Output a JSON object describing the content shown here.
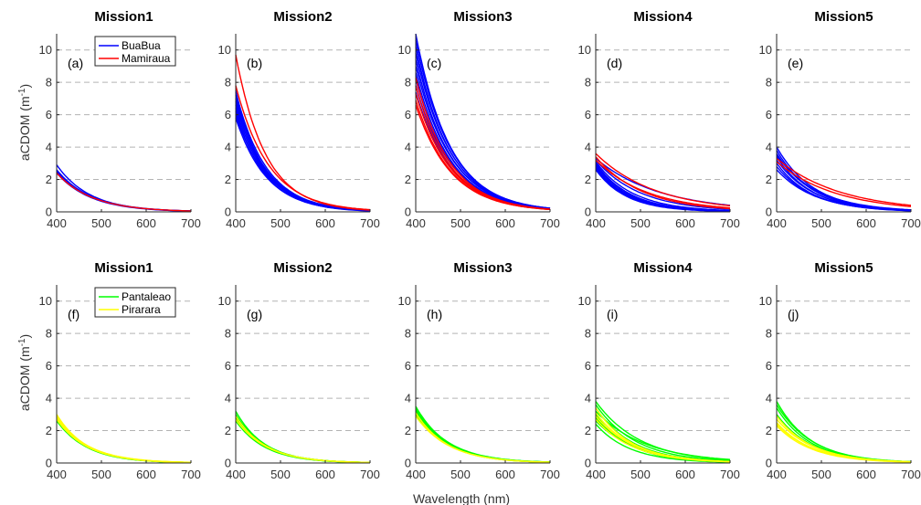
{
  "figure": {
    "ylabel": "aCDOM (m",
    "ylabel_sup": "-1",
    "ylabel_tail": ")",
    "xlabel": "Wavelength (nm)",
    "colors": {
      "BuaBua": "#0000ff",
      "Mamiraua": "#ff0000",
      "Pantaleao": "#00ff00",
      "Pirarara": "#ffff00"
    }
  },
  "legends": [
    {
      "entries": [
        {
          "name": "BuaBua",
          "color": "#0000ff"
        },
        {
          "name": "Mamiraua",
          "color": "#ff0000"
        }
      ]
    },
    {
      "entries": [
        {
          "name": "Pantaleao",
          "color": "#00ff00"
        },
        {
          "name": "Pirarara",
          "color": "#ffff00"
        }
      ]
    }
  ],
  "chart_data": [
    {
      "type": "line",
      "title": "Mission1",
      "panel_label": "(a)",
      "xlim": [
        400,
        700
      ],
      "ylim": [
        0,
        11
      ],
      "xticks": [
        "400",
        "500",
        "600",
        "700"
      ],
      "yticks": [
        "0",
        "2",
        "4",
        "6",
        "8",
        "10"
      ],
      "grid": "y-dashed",
      "series": [
        {
          "name": "BuaBua",
          "color": "#0000ff",
          "curves": [
            {
              "a400": 2.9,
              "s": 0.0135
            },
            {
              "a400": 2.6,
              "s": 0.013
            },
            {
              "a400": 2.5,
              "s": 0.0125
            },
            {
              "a400": 2.4,
              "s": 0.013
            }
          ]
        },
        {
          "name": "Mamiraua",
          "color": "#ff0000",
          "curves": [
            {
              "a400": 2.4,
              "s": 0.0125
            }
          ]
        }
      ]
    },
    {
      "type": "line",
      "title": "Mission2",
      "panel_label": "(b)",
      "xlim": [
        400,
        700
      ],
      "ylim": [
        0,
        11
      ],
      "xticks": [
        "400",
        "500",
        "600",
        "700"
      ],
      "yticks": [
        "0",
        "2",
        "4",
        "6",
        "8",
        "10"
      ],
      "grid": "y-dashed",
      "series": [
        {
          "name": "BuaBua",
          "color": "#0000ff",
          "curves": [
            {
              "a400": 7.4,
              "s": 0.0145
            },
            {
              "a400": 7.2,
              "s": 0.015
            },
            {
              "a400": 7.0,
              "s": 0.0145
            },
            {
              "a400": 6.8,
              "s": 0.015
            },
            {
              "a400": 6.6,
              "s": 0.014
            },
            {
              "a400": 6.4,
              "s": 0.0145
            },
            {
              "a400": 6.2,
              "s": 0.015
            },
            {
              "a400": 6.0,
              "s": 0.014
            },
            {
              "a400": 5.8,
              "s": 0.0145
            },
            {
              "a400": 7.5,
              "s": 0.016
            }
          ]
        },
        {
          "name": "Mamiraua",
          "color": "#ff0000",
          "curves": [
            {
              "a400": 9.7,
              "s": 0.015
            },
            {
              "a400": 7.8,
              "s": 0.0135
            }
          ]
        }
      ]
    },
    {
      "type": "line",
      "title": "Mission3",
      "panel_label": "(c)",
      "xlim": [
        400,
        700
      ],
      "ylim": [
        0,
        11
      ],
      "xticks": [
        "400",
        "500",
        "600",
        "700"
      ],
      "yticks": [
        "0",
        "2",
        "4",
        "6",
        "8",
        "10"
      ],
      "grid": "y-dashed",
      "series": [
        {
          "name": "BuaBua",
          "color": "#0000ff",
          "curves": [
            {
              "a400": 11.0,
              "s": 0.013
            },
            {
              "a400": 10.6,
              "s": 0.0128
            },
            {
              "a400": 10.2,
              "s": 0.013
            },
            {
              "a400": 9.8,
              "s": 0.0126
            },
            {
              "a400": 9.4,
              "s": 0.0128
            },
            {
              "a400": 9.0,
              "s": 0.0125
            },
            {
              "a400": 8.6,
              "s": 0.0127
            },
            {
              "a400": 8.2,
              "s": 0.0125
            },
            {
              "a400": 7.8,
              "s": 0.0123
            },
            {
              "a400": 7.4,
              "s": 0.0125
            }
          ]
        },
        {
          "name": "Mamiraua",
          "color": "#ff0000",
          "curves": [
            {
              "a400": 8.3,
              "s": 0.013
            },
            {
              "a400": 7.8,
              "s": 0.013
            },
            {
              "a400": 7.3,
              "s": 0.0128
            },
            {
              "a400": 6.9,
              "s": 0.0128
            },
            {
              "a400": 6.6,
              "s": 0.0126
            }
          ]
        }
      ]
    },
    {
      "type": "line",
      "title": "Mission4",
      "panel_label": "(d)",
      "xlim": [
        400,
        700
      ],
      "ylim": [
        0,
        11
      ],
      "xticks": [
        "400",
        "500",
        "600",
        "700"
      ],
      "yticks": [
        "0",
        "2",
        "4",
        "6",
        "8",
        "10"
      ],
      "grid": "y-dashed",
      "series": [
        {
          "name": "BuaBua",
          "color": "#0000ff",
          "curves": [
            {
              "a400": 3.3,
              "s": 0.007
            },
            {
              "a400": 3.2,
              "s": 0.01
            },
            {
              "a400": 3.1,
              "s": 0.012
            },
            {
              "a400": 3.0,
              "s": 0.013
            },
            {
              "a400": 2.9,
              "s": 0.0135
            },
            {
              "a400": 2.8,
              "s": 0.014
            },
            {
              "a400": 2.7,
              "s": 0.014
            },
            {
              "a400": 2.6,
              "s": 0.0145
            }
          ]
        },
        {
          "name": "Mamiraua",
          "color": "#ff0000",
          "curves": [
            {
              "a400": 3.6,
              "s": 0.0075
            },
            {
              "a400": 3.4,
              "s": 0.0095
            },
            {
              "a400": 3.2,
              "s": 0.0085
            }
          ]
        }
      ]
    },
    {
      "type": "line",
      "title": "Mission5",
      "panel_label": "(e)",
      "xlim": [
        400,
        700
      ],
      "ylim": [
        0,
        11
      ],
      "xticks": [
        "400",
        "500",
        "600",
        "700"
      ],
      "yticks": [
        "0",
        "2",
        "4",
        "6",
        "8",
        "10"
      ],
      "grid": "y-dashed",
      "series": [
        {
          "name": "BuaBua",
          "color": "#0000ff",
          "curves": [
            {
              "a400": 4.0,
              "s": 0.012
            },
            {
              "a400": 3.8,
              "s": 0.0125
            },
            {
              "a400": 3.6,
              "s": 0.012
            },
            {
              "a400": 3.4,
              "s": 0.0125
            },
            {
              "a400": 3.2,
              "s": 0.012
            },
            {
              "a400": 3.0,
              "s": 0.0125
            },
            {
              "a400": 2.8,
              "s": 0.012
            },
            {
              "a400": 2.6,
              "s": 0.0115
            },
            {
              "a400": 3.5,
              "s": 0.011
            }
          ]
        },
        {
          "name": "Mamiraua",
          "color": "#ff0000",
          "curves": [
            {
              "a400": 3.3,
              "s": 0.007
            },
            {
              "a400": 3.1,
              "s": 0.0075
            }
          ]
        }
      ]
    },
    {
      "type": "line",
      "title": "Mission1",
      "panel_label": "(f)",
      "xlim": [
        400,
        700
      ],
      "ylim": [
        0,
        11
      ],
      "xticks": [
        "400",
        "500",
        "600",
        "700"
      ],
      "yticks": [
        "0",
        "2",
        "4",
        "6",
        "8",
        "10"
      ],
      "grid": "y-dashed",
      "series": [
        {
          "name": "Pantaleao",
          "color": "#00ff00",
          "curves": [
            {
              "a400": 2.9,
              "s": 0.015
            },
            {
              "a400": 2.8,
              "s": 0.0145
            },
            {
              "a400": 2.7,
              "s": 0.015
            },
            {
              "a400": 2.6,
              "s": 0.0145
            }
          ]
        },
        {
          "name": "Pirarara",
          "color": "#ffff00",
          "curves": [
            {
              "a400": 3.0,
              "s": 0.015
            },
            {
              "a400": 2.9,
              "s": 0.0145
            },
            {
              "a400": 2.8,
              "s": 0.014
            },
            {
              "a400": 2.7,
              "s": 0.0145
            }
          ]
        }
      ]
    },
    {
      "type": "line",
      "title": "Mission2",
      "panel_label": "(g)",
      "xlim": [
        400,
        700
      ],
      "ylim": [
        0,
        11
      ],
      "xticks": [
        "400",
        "500",
        "600",
        "700"
      ],
      "yticks": [
        "0",
        "2",
        "4",
        "6",
        "8",
        "10"
      ],
      "grid": "y-dashed",
      "series": [
        {
          "name": "Pantaleao",
          "color": "#00ff00",
          "curves": [
            {
              "a400": 3.2,
              "s": 0.0155
            },
            {
              "a400": 3.0,
              "s": 0.015
            },
            {
              "a400": 2.9,
              "s": 0.0155
            },
            {
              "a400": 2.8,
              "s": 0.015
            },
            {
              "a400": 2.7,
              "s": 0.0145
            },
            {
              "a400": 2.6,
              "s": 0.015
            }
          ]
        },
        {
          "name": "Pirarara",
          "color": "#ffff00",
          "curves": [
            {
              "a400": 2.9,
              "s": 0.015
            },
            {
              "a400": 2.7,
              "s": 0.0145
            }
          ]
        }
      ]
    },
    {
      "type": "line",
      "title": "Mission3",
      "panel_label": "(h)",
      "xlim": [
        400,
        700
      ],
      "ylim": [
        0,
        11
      ],
      "xticks": [
        "400",
        "500",
        "600",
        "700"
      ],
      "yticks": [
        "0",
        "2",
        "4",
        "6",
        "8",
        "10"
      ],
      "grid": "y-dashed",
      "series": [
        {
          "name": "Pantaleao",
          "color": "#00ff00",
          "curves": [
            {
              "a400": 3.5,
              "s": 0.014
            },
            {
              "a400": 3.4,
              "s": 0.0135
            },
            {
              "a400": 3.3,
              "s": 0.014
            },
            {
              "a400": 3.2,
              "s": 0.0135
            },
            {
              "a400": 3.1,
              "s": 0.014
            },
            {
              "a400": 3.0,
              "s": 0.0135
            },
            {
              "a400": 2.9,
              "s": 0.013
            }
          ]
        },
        {
          "name": "Pirarara",
          "color": "#ffff00",
          "curves": [
            {
              "a400": 3.1,
              "s": 0.014
            },
            {
              "a400": 2.9,
              "s": 0.0135
            }
          ]
        }
      ]
    },
    {
      "type": "line",
      "title": "Mission4",
      "panel_label": "(i)",
      "xlim": [
        400,
        700
      ],
      "ylim": [
        0,
        11
      ],
      "xticks": [
        "400",
        "500",
        "600",
        "700"
      ],
      "yticks": [
        "0",
        "2",
        "4",
        "6",
        "8",
        "10"
      ],
      "grid": "y-dashed",
      "series": [
        {
          "name": "Pantaleao",
          "color": "#00ff00",
          "curves": [
            {
              "a400": 3.8,
              "s": 0.01
            },
            {
              "a400": 3.6,
              "s": 0.011
            },
            {
              "a400": 3.4,
              "s": 0.012
            },
            {
              "a400": 3.2,
              "s": 0.009
            },
            {
              "a400": 3.0,
              "s": 0.013
            },
            {
              "a400": 2.8,
              "s": 0.012
            },
            {
              "a400": 2.6,
              "s": 0.011
            },
            {
              "a400": 2.4,
              "s": 0.013
            }
          ]
        },
        {
          "name": "Pirarara",
          "color": "#ffff00",
          "curves": [
            {
              "a400": 3.4,
              "s": 0.0125
            },
            {
              "a400": 3.1,
              "s": 0.012
            },
            {
              "a400": 2.9,
              "s": 0.0115
            },
            {
              "a400": 2.7,
              "s": 0.012
            }
          ]
        }
      ]
    },
    {
      "type": "line",
      "title": "Mission5",
      "panel_label": "(j)",
      "xlim": [
        400,
        700
      ],
      "ylim": [
        0,
        11
      ],
      "xticks": [
        "400",
        "500",
        "600",
        "700"
      ],
      "yticks": [
        "0",
        "2",
        "4",
        "6",
        "8",
        "10"
      ],
      "grid": "y-dashed",
      "series": [
        {
          "name": "Pantaleao",
          "color": "#00ff00",
          "curves": [
            {
              "a400": 3.8,
              "s": 0.013
            },
            {
              "a400": 3.6,
              "s": 0.0125
            },
            {
              "a400": 3.4,
              "s": 0.013
            },
            {
              "a400": 3.0,
              "s": 0.0125
            }
          ]
        },
        {
          "name": "Pirarara",
          "color": "#ffff00",
          "curves": [
            {
              "a400": 2.9,
              "s": 0.0125
            },
            {
              "a400": 2.7,
              "s": 0.012
            },
            {
              "a400": 2.5,
              "s": 0.0125
            },
            {
              "a400": 2.4,
              "s": 0.012
            },
            {
              "a400": 2.3,
              "s": 0.0125
            }
          ]
        }
      ]
    }
  ]
}
